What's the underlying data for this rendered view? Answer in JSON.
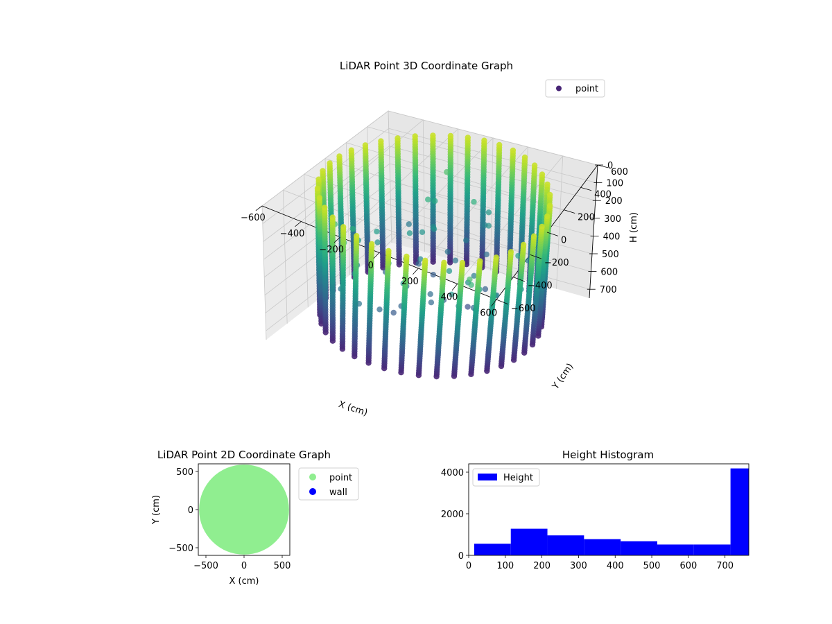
{
  "chart_data": [
    {
      "id": "scatter3d",
      "type": "scatter",
      "projection": "3d",
      "title": "LiDAR Point 3D Coordinate Graph",
      "xlabel": "X (cm)",
      "ylabel": "Y (cm)",
      "zlabel": "H (cm)",
      "xlim": [
        -600,
        600
      ],
      "ylim": [
        -600,
        600
      ],
      "zlim": [
        0,
        750
      ],
      "z_inverted": true,
      "xticks": [
        -600,
        -400,
        -200,
        0,
        200,
        400,
        600
      ],
      "yticks": [
        -600,
        -400,
        -200,
        0,
        200,
        400,
        600
      ],
      "zticks": [
        0,
        100,
        200,
        300,
        400,
        500,
        600,
        700
      ],
      "colormap": "viridis",
      "grid": true,
      "legend": {
        "position": "top-right",
        "entries": [
          {
            "label": "point",
            "color": "#482576"
          }
        ]
      },
      "series": [
        {
          "name": "point",
          "shape": "cylindrical wall of scan columns with a sparse interior ceiling",
          "radius": 560,
          "height_range": [
            0,
            730
          ],
          "column_count": 40
        }
      ]
    },
    {
      "id": "scatter2d",
      "type": "scatter",
      "title": "LiDAR Point 2D Coordinate Graph",
      "xlabel": "X (cm)",
      "ylabel": "Y (cm)",
      "xlim": [
        -600,
        600
      ],
      "ylim": [
        -600,
        600
      ],
      "xticks": [
        -500,
        0,
        500
      ],
      "yticks": [
        -500,
        0,
        500
      ],
      "legend": {
        "position": "outside-right",
        "entries": [
          {
            "label": "point",
            "color": "#90ee90"
          },
          {
            "label": "wall",
            "color": "#0000ff"
          }
        ]
      },
      "series": [
        {
          "name": "point",
          "color": "#90ee90",
          "shape": "filled disc",
          "radius": 590
        },
        {
          "name": "wall",
          "color": "#0000ff",
          "values": []
        }
      ]
    },
    {
      "id": "histogram",
      "type": "bar",
      "title": "Height Histogram",
      "xlim": [
        0,
        765
      ],
      "ylim": [
        0,
        4400
      ],
      "xticks": [
        0,
        100,
        200,
        300,
        400,
        500,
        600,
        700
      ],
      "yticks": [
        0,
        2000,
        4000
      ],
      "legend": {
        "position": "top-left",
        "entries": [
          {
            "label": "Height",
            "color": "#0000ff"
          }
        ]
      },
      "color": "#0000ff",
      "series": [
        {
          "name": "Height",
          "bins": [
            {
              "start": 15,
              "end": 115,
              "count": 560
            },
            {
              "start": 115,
              "end": 215,
              "count": 1280
            },
            {
              "start": 215,
              "end": 315,
              "count": 960
            },
            {
              "start": 315,
              "end": 415,
              "count": 780
            },
            {
              "start": 415,
              "end": 515,
              "count": 680
            },
            {
              "start": 515,
              "end": 615,
              "count": 520
            },
            {
              "start": 615,
              "end": 715,
              "count": 520
            },
            {
              "start": 715,
              "end": 765,
              "count": 4180
            }
          ]
        }
      ]
    }
  ]
}
